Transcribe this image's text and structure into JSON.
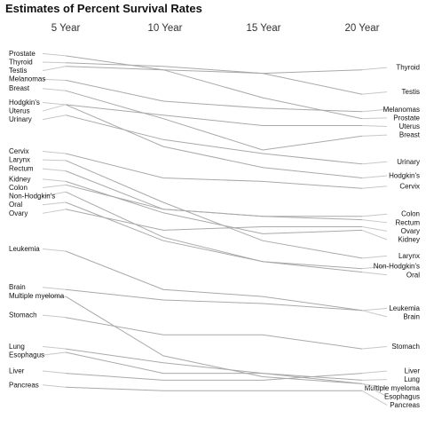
{
  "chart_data": {
    "type": "line",
    "title": "Estimates of Percent Survival Rates",
    "x": [
      "5 Year",
      "10 Year",
      "15 Year",
      "20 Year"
    ],
    "ylim": [
      0,
      100
    ],
    "grid": false,
    "legend": "none",
    "colors": {
      "line": "#a9a9a9",
      "connector": "#c8c8c8",
      "text": "#111111"
    },
    "series": [
      {
        "name": "Prostate",
        "values": [
          99,
          95,
          87,
          81
        ]
      },
      {
        "name": "Thyroid",
        "values": [
          97,
          96,
          94,
          95
        ]
      },
      {
        "name": "Testis",
        "values": [
          96,
          95,
          94,
          88
        ]
      },
      {
        "name": "Melanomas",
        "values": [
          92,
          86,
          84,
          83
        ]
      },
      {
        "name": "Breast",
        "values": [
          89,
          81,
          72,
          76
        ]
      },
      {
        "name": "Hodgkin's",
        "values": [
          85,
          73,
          67,
          64
        ]
      },
      {
        "name": "Uterus",
        "values": [
          85,
          82,
          79,
          79
        ]
      },
      {
        "name": "Urinary",
        "values": [
          82,
          75,
          71,
          68
        ]
      },
      {
        "name": "Cervix",
        "values": [
          71,
          64,
          63,
          61
        ]
      },
      {
        "name": "Larynx",
        "values": [
          69,
          57,
          46,
          41
        ]
      },
      {
        "name": "Rectum",
        "values": [
          66,
          55,
          53,
          52
        ]
      },
      {
        "name": "Kidney",
        "values": [
          63,
          54,
          48,
          49
        ]
      },
      {
        "name": "Colon",
        "values": [
          62,
          55,
          53,
          53
        ]
      },
      {
        "name": "Non-Hodgkin's",
        "values": [
          60,
          47,
          40,
          38
        ]
      },
      {
        "name": "Oral",
        "values": [
          57,
          46,
          40,
          37
        ]
      },
      {
        "name": "Ovary",
        "values": [
          55,
          49,
          50,
          50
        ]
      },
      {
        "name": "Leukemia",
        "values": [
          43,
          32,
          30,
          26
        ]
      },
      {
        "name": "Brain",
        "values": [
          32,
          29,
          28,
          26
        ]
      },
      {
        "name": "Multiple myeloma",
        "values": [
          30,
          13,
          7,
          5
        ]
      },
      {
        "name": "Stomach",
        "values": [
          24,
          19,
          19,
          15
        ]
      },
      {
        "name": "Lung",
        "values": [
          15,
          11,
          8,
          6
        ]
      },
      {
        "name": "Esophagus",
        "values": [
          14,
          8,
          8,
          5
        ]
      },
      {
        "name": "Liver",
        "values": [
          8,
          6,
          6,
          8
        ]
      },
      {
        "name": "Pancreas",
        "values": [
          4,
          3,
          3,
          3
        ]
      }
    ],
    "right_label_order": [
      "Thyroid",
      "Testis",
      "Melanomas",
      "Prostate",
      "Uterus",
      "Breast",
      "Urinary",
      "Hodgkin's",
      "Cervix",
      "Colon",
      "Ovary",
      "Rectum",
      "Kidney",
      "Larynx",
      "Non-Hodgkin's",
      "Oral",
      "Brain",
      "Leukemia",
      "Stomach",
      "Liver",
      "Lung",
      "Esophagus",
      "Multiple myeloma",
      "Pancreas"
    ]
  }
}
